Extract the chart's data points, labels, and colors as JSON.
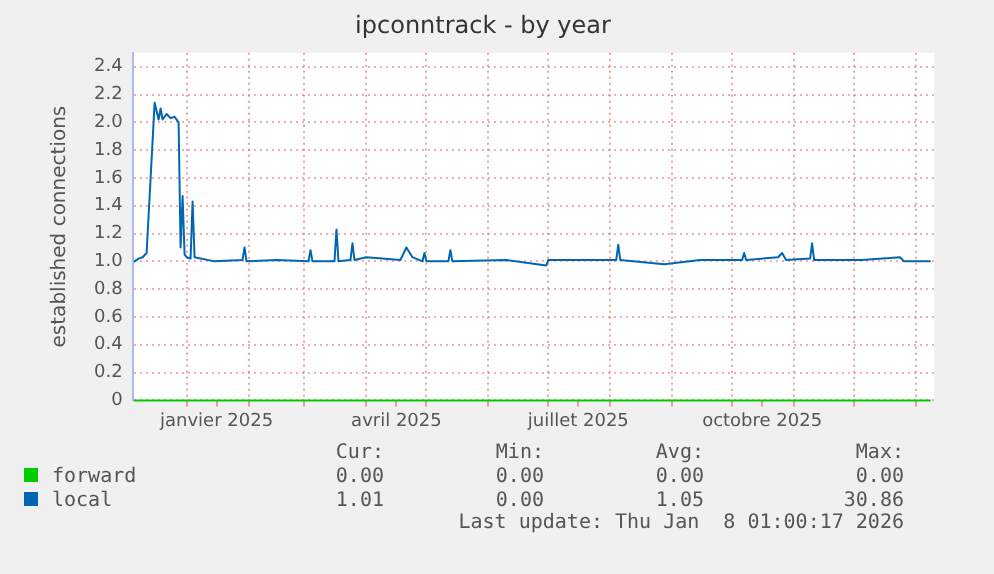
{
  "chart_data": {
    "type": "line",
    "title": "ipconntrack - by year",
    "ylabel": "established connections",
    "xlim": [
      "2024-12-05",
      "2026-01-10"
    ],
    "ylim": [
      0,
      2.5
    ],
    "xticks": [
      {
        "value": "2025-01-01",
        "label": null
      },
      {
        "value": "2025-01-16",
        "label": "janvier 2025"
      },
      {
        "value": "2025-02-01",
        "label": null
      },
      {
        "value": "2025-03-01",
        "label": null
      },
      {
        "value": "2025-04-01",
        "label": null
      },
      {
        "value": "2025-04-16",
        "label": "avril 2025"
      },
      {
        "value": "2025-05-01",
        "label": null
      },
      {
        "value": "2025-06-01",
        "label": null
      },
      {
        "value": "2025-07-01",
        "label": null
      },
      {
        "value": "2025-07-16",
        "label": "juillet 2025"
      },
      {
        "value": "2025-08-01",
        "label": null
      },
      {
        "value": "2025-09-01",
        "label": null
      },
      {
        "value": "2025-10-01",
        "label": null
      },
      {
        "value": "2025-10-16",
        "label": "octobre 2025"
      },
      {
        "value": "2025-11-01",
        "label": null
      },
      {
        "value": "2025-12-01",
        "label": null
      },
      {
        "value": "2026-01-01",
        "label": null
      }
    ],
    "yticks": [
      0,
      {
        "value": 0.2,
        "label": "0.2"
      },
      {
        "value": 0.4,
        "label": "0.4"
      },
      {
        "value": 0.6,
        "label": "0.6"
      },
      {
        "value": 0.8,
        "label": "0.8"
      },
      {
        "value": 1,
        "label": "1.0"
      },
      {
        "value": 1.2,
        "label": "1.2"
      },
      {
        "value": 1.4,
        "label": "1.4"
      },
      {
        "value": 1.6,
        "label": "1.6"
      },
      {
        "value": 1.8,
        "label": "1.8"
      },
      {
        "value": 2,
        "label": "2.0"
      },
      {
        "value": 2.2,
        "label": "2.2"
      },
      {
        "value": 2.4,
        "label": "2.4"
      }
    ],
    "grid": true,
    "legend": "bottom",
    "marker": "none",
    "line_style": "solid",
    "series": [
      {
        "name": "forward",
        "color": "#00cc00",
        "x": [
          "2024-12-06",
          "2026-01-08"
        ],
        "values": [
          0,
          0
        ]
      },
      {
        "name": "local",
        "color": "#0066b3",
        "x": [
          "2024-12-06",
          "2024-12-08",
          "2024-12-10",
          "2024-12-12",
          "2024-12-16",
          "2024-12-18",
          "2024-12-19",
          "2024-12-20",
          "2024-12-22",
          "2024-12-24",
          "2024-12-26",
          "2024-12-28",
          "2024-12-29",
          "2024-12-30",
          "2024-12-31",
          "2025-01-01",
          "2025-01-03",
          "2025-01-04",
          "2025-01-05",
          "2025-01-15",
          "2025-01-29",
          "2025-01-30",
          "2025-01-31",
          "2025-02-15",
          "2025-03-03",
          "2025-03-04",
          "2025-03-05",
          "2025-03-16",
          "2025-03-17",
          "2025-03-18",
          "2025-03-24",
          "2025-03-25",
          "2025-03-26",
          "2025-04-01",
          "2025-04-18",
          "2025-04-21",
          "2025-04-24",
          "2025-04-29",
          "2025-04-30",
          "2025-05-01",
          "2025-05-12",
          "2025-05-13",
          "2025-05-14",
          "2025-06-10",
          "2025-06-30",
          "2025-07-01",
          "2025-07-20",
          "2025-08-04",
          "2025-08-05",
          "2025-08-06",
          "2025-08-28",
          "2025-09-15",
          "2025-10-06",
          "2025-10-07",
          "2025-10-08",
          "2025-10-24",
          "2025-10-26",
          "2025-10-28",
          "2025-11-09",
          "2025-11-10",
          "2025-11-11",
          "2025-12-05",
          "2025-12-24",
          "2025-12-26",
          "2026-01-08"
        ],
        "values": [
          1.0,
          1.02,
          1.03,
          1.06,
          2.14,
          2.02,
          2.1,
          2.02,
          2.06,
          2.03,
          2.04,
          2.0,
          1.1,
          1.47,
          1.05,
          1.03,
          1.02,
          1.43,
          1.03,
          1.0,
          1.01,
          1.1,
          1.0,
          1.01,
          1.0,
          1.08,
          1.0,
          1.0,
          1.23,
          1.0,
          1.01,
          1.13,
          1.01,
          1.03,
          1.01,
          1.1,
          1.03,
          1.0,
          1.06,
          1.0,
          1.0,
          1.08,
          1.0,
          1.01,
          0.97,
          1.01,
          1.01,
          1.01,
          1.12,
          1.01,
          0.98,
          1.01,
          1.01,
          1.06,
          1.01,
          1.03,
          1.06,
          1.01,
          1.02,
          1.13,
          1.01,
          1.01,
          1.03,
          1.0,
          1.0
        ]
      }
    ],
    "annotations": [
      "Cur:",
      "Min:",
      "Avg:",
      "Max:",
      "0.00",
      "0.00",
      "0.00",
      "0.00",
      "1.01",
      "0.00",
      "1.05",
      "30.86",
      "Last update: Thu Jan  8 01:00:17 2026"
    ]
  }
}
